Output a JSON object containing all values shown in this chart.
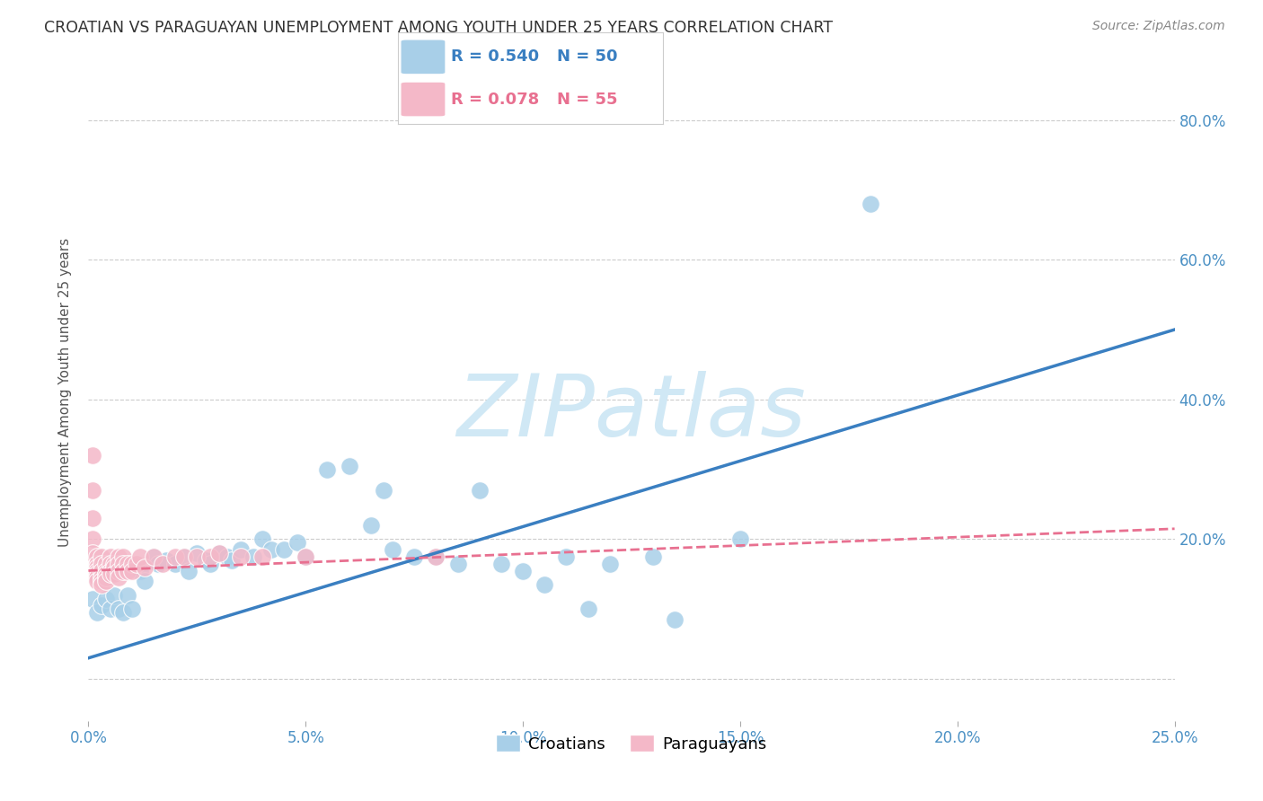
{
  "title": "CROATIAN VS PARAGUAYAN UNEMPLOYMENT AMONG YOUTH UNDER 25 YEARS CORRELATION CHART",
  "source": "Source: ZipAtlas.com",
  "ylabel": "Unemployment Among Youth under 25 years",
  "xlim": [
    0.0,
    0.25
  ],
  "ylim": [
    -0.06,
    0.88
  ],
  "croatian_R": 0.54,
  "croatian_N": 50,
  "paraguayan_R": 0.078,
  "paraguayan_N": 55,
  "croatian_color": "#a8cfe8",
  "paraguayan_color": "#f4b8c8",
  "trendline_croatian_color": "#3a7fc1",
  "trendline_paraguayan_color": "#e87090",
  "watermark_color": "#d0e8f5",
  "background_color": "#ffffff",
  "grid_color": "#cccccc",
  "title_color": "#333333",
  "axis_label_color": "#555555",
  "tick_label_color": "#4a90c4",
  "croatian_trend_x0": 0.0,
  "croatian_trend_y0": 0.03,
  "croatian_trend_x1": 0.25,
  "croatian_trend_y1": 0.5,
  "paraguayan_trend_x0": 0.0,
  "paraguayan_trend_y0": 0.155,
  "paraguayan_trend_x1": 0.25,
  "paraguayan_trend_y1": 0.215,
  "croatian_points": [
    [
      0.001,
      0.115
    ],
    [
      0.002,
      0.095
    ],
    [
      0.003,
      0.105
    ],
    [
      0.004,
      0.115
    ],
    [
      0.005,
      0.1
    ],
    [
      0.006,
      0.12
    ],
    [
      0.007,
      0.1
    ],
    [
      0.008,
      0.095
    ],
    [
      0.009,
      0.12
    ],
    [
      0.01,
      0.1
    ],
    [
      0.012,
      0.155
    ],
    [
      0.013,
      0.14
    ],
    [
      0.015,
      0.175
    ],
    [
      0.016,
      0.165
    ],
    [
      0.018,
      0.17
    ],
    [
      0.02,
      0.165
    ],
    [
      0.022,
      0.175
    ],
    [
      0.023,
      0.155
    ],
    [
      0.025,
      0.18
    ],
    [
      0.027,
      0.17
    ],
    [
      0.028,
      0.165
    ],
    [
      0.03,
      0.18
    ],
    [
      0.032,
      0.175
    ],
    [
      0.033,
      0.17
    ],
    [
      0.035,
      0.185
    ],
    [
      0.038,
      0.175
    ],
    [
      0.04,
      0.2
    ],
    [
      0.042,
      0.185
    ],
    [
      0.045,
      0.185
    ],
    [
      0.048,
      0.195
    ],
    [
      0.05,
      0.175
    ],
    [
      0.055,
      0.3
    ],
    [
      0.06,
      0.305
    ],
    [
      0.065,
      0.22
    ],
    [
      0.068,
      0.27
    ],
    [
      0.07,
      0.185
    ],
    [
      0.075,
      0.175
    ],
    [
      0.08,
      0.175
    ],
    [
      0.085,
      0.165
    ],
    [
      0.09,
      0.27
    ],
    [
      0.095,
      0.165
    ],
    [
      0.1,
      0.155
    ],
    [
      0.105,
      0.135
    ],
    [
      0.11,
      0.175
    ],
    [
      0.115,
      0.1
    ],
    [
      0.12,
      0.165
    ],
    [
      0.13,
      0.175
    ],
    [
      0.15,
      0.2
    ],
    [
      0.18,
      0.68
    ],
    [
      0.135,
      0.085
    ]
  ],
  "paraguayan_points": [
    [
      0.001,
      0.32
    ],
    [
      0.001,
      0.27
    ],
    [
      0.001,
      0.23
    ],
    [
      0.001,
      0.2
    ],
    [
      0.001,
      0.18
    ],
    [
      0.002,
      0.175
    ],
    [
      0.002,
      0.165
    ],
    [
      0.002,
      0.16
    ],
    [
      0.002,
      0.155
    ],
    [
      0.002,
      0.15
    ],
    [
      0.002,
      0.145
    ],
    [
      0.002,
      0.14
    ],
    [
      0.003,
      0.175
    ],
    [
      0.003,
      0.165
    ],
    [
      0.003,
      0.155
    ],
    [
      0.003,
      0.145
    ],
    [
      0.003,
      0.14
    ],
    [
      0.003,
      0.135
    ],
    [
      0.004,
      0.165
    ],
    [
      0.004,
      0.155
    ],
    [
      0.004,
      0.15
    ],
    [
      0.004,
      0.145
    ],
    [
      0.004,
      0.14
    ],
    [
      0.005,
      0.175
    ],
    [
      0.005,
      0.165
    ],
    [
      0.005,
      0.155
    ],
    [
      0.005,
      0.15
    ],
    [
      0.006,
      0.165
    ],
    [
      0.006,
      0.16
    ],
    [
      0.006,
      0.15
    ],
    [
      0.007,
      0.175
    ],
    [
      0.007,
      0.165
    ],
    [
      0.007,
      0.155
    ],
    [
      0.007,
      0.145
    ],
    [
      0.008,
      0.175
    ],
    [
      0.008,
      0.165
    ],
    [
      0.008,
      0.155
    ],
    [
      0.009,
      0.165
    ],
    [
      0.009,
      0.155
    ],
    [
      0.01,
      0.165
    ],
    [
      0.01,
      0.155
    ],
    [
      0.011,
      0.165
    ],
    [
      0.012,
      0.175
    ],
    [
      0.013,
      0.16
    ],
    [
      0.015,
      0.175
    ],
    [
      0.017,
      0.165
    ],
    [
      0.02,
      0.175
    ],
    [
      0.022,
      0.175
    ],
    [
      0.025,
      0.175
    ],
    [
      0.028,
      0.175
    ],
    [
      0.03,
      0.18
    ],
    [
      0.035,
      0.175
    ],
    [
      0.04,
      0.175
    ],
    [
      0.05,
      0.175
    ],
    [
      0.08,
      0.175
    ]
  ]
}
